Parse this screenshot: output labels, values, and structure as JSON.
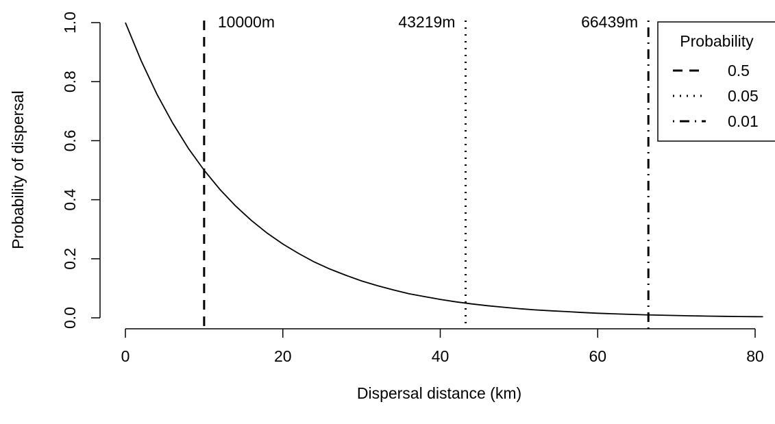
{
  "chart_data": {
    "type": "line",
    "title": "",
    "xlabel": "Dispersal distance (km)",
    "ylabel": "Probability of dispersal",
    "xlim": [
      0,
      80
    ],
    "ylim": [
      0,
      1
    ],
    "x_ticks": [
      0,
      20,
      40,
      60,
      80
    ],
    "x_tick_labels": [
      "0",
      "20",
      "40",
      "60",
      "80"
    ],
    "y_ticks": [
      0,
      0.2,
      0.4,
      0.6,
      0.8,
      1.0
    ],
    "y_tick_labels": [
      "0.0",
      "0.2",
      "0.4",
      "0.6",
      "0.8",
      "1.0"
    ],
    "grid": false,
    "curve": {
      "x": [
        0,
        2,
        4,
        6,
        8,
        10,
        12,
        14,
        16,
        18,
        20,
        22,
        24,
        26,
        28,
        30,
        32,
        34,
        36,
        38,
        40,
        42,
        44,
        46,
        48,
        50,
        52,
        54,
        56,
        58,
        60,
        62,
        64,
        66,
        68,
        70,
        72,
        74,
        76,
        78,
        80,
        81
      ],
      "y": [
        1.0,
        0.871,
        0.758,
        0.66,
        0.574,
        0.5,
        0.435,
        0.379,
        0.33,
        0.287,
        0.25,
        0.218,
        0.189,
        0.165,
        0.144,
        0.125,
        0.109,
        0.095,
        0.082,
        0.072,
        0.0625,
        0.054,
        0.047,
        0.041,
        0.036,
        0.031,
        0.027,
        0.024,
        0.021,
        0.018,
        0.0156,
        0.0136,
        0.0118,
        0.0103,
        0.009,
        0.0078,
        0.0068,
        0.0059,
        0.0051,
        0.0045,
        0.0039,
        0.0036
      ]
    },
    "thresholds": [
      {
        "probability": "0.5",
        "x": 10.0,
        "label": "10000m",
        "style": "dashed"
      },
      {
        "probability": "0.05",
        "x": 43.219,
        "label": "43219m",
        "style": "dotted"
      },
      {
        "probability": "0.01",
        "x": 66.439,
        "label": "66439m",
        "style": "dotdash"
      }
    ],
    "legend": {
      "title": "Probability",
      "placement": "top-right",
      "entries": [
        {
          "label": "0.5",
          "style": "dashed"
        },
        {
          "label": "0.05",
          "style": "dotted"
        },
        {
          "label": "0.01",
          "style": "dotdash"
        }
      ]
    }
  }
}
